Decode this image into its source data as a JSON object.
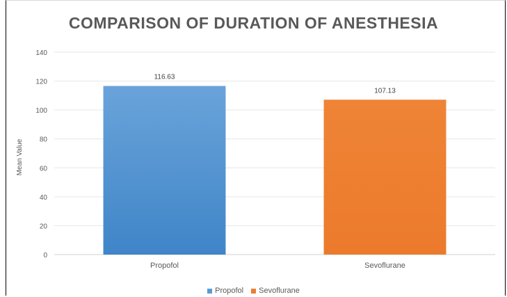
{
  "chart_data": {
    "type": "bar",
    "title": "COMPARISON OF DURATION OF ANESTHESIA",
    "xlabel": "",
    "ylabel": "Mean Value",
    "ylim": [
      0,
      140
    ],
    "yticks": [
      0,
      20,
      40,
      60,
      80,
      100,
      120,
      140
    ],
    "categories": [
      "Propofol",
      "Sevoflurane"
    ],
    "values": [
      116.63,
      107.13
    ],
    "data_labels": [
      "116.63",
      "107.13"
    ],
    "colors": [
      "#5b9bd5",
      "#ed7d31"
    ],
    "grid": true,
    "legend": {
      "placement": "bottom",
      "entries": [
        {
          "name": "Propofol",
          "color": "#5b9bd5"
        },
        {
          "name": "Sevoflurane",
          "color": "#ed7d31"
        }
      ]
    }
  }
}
